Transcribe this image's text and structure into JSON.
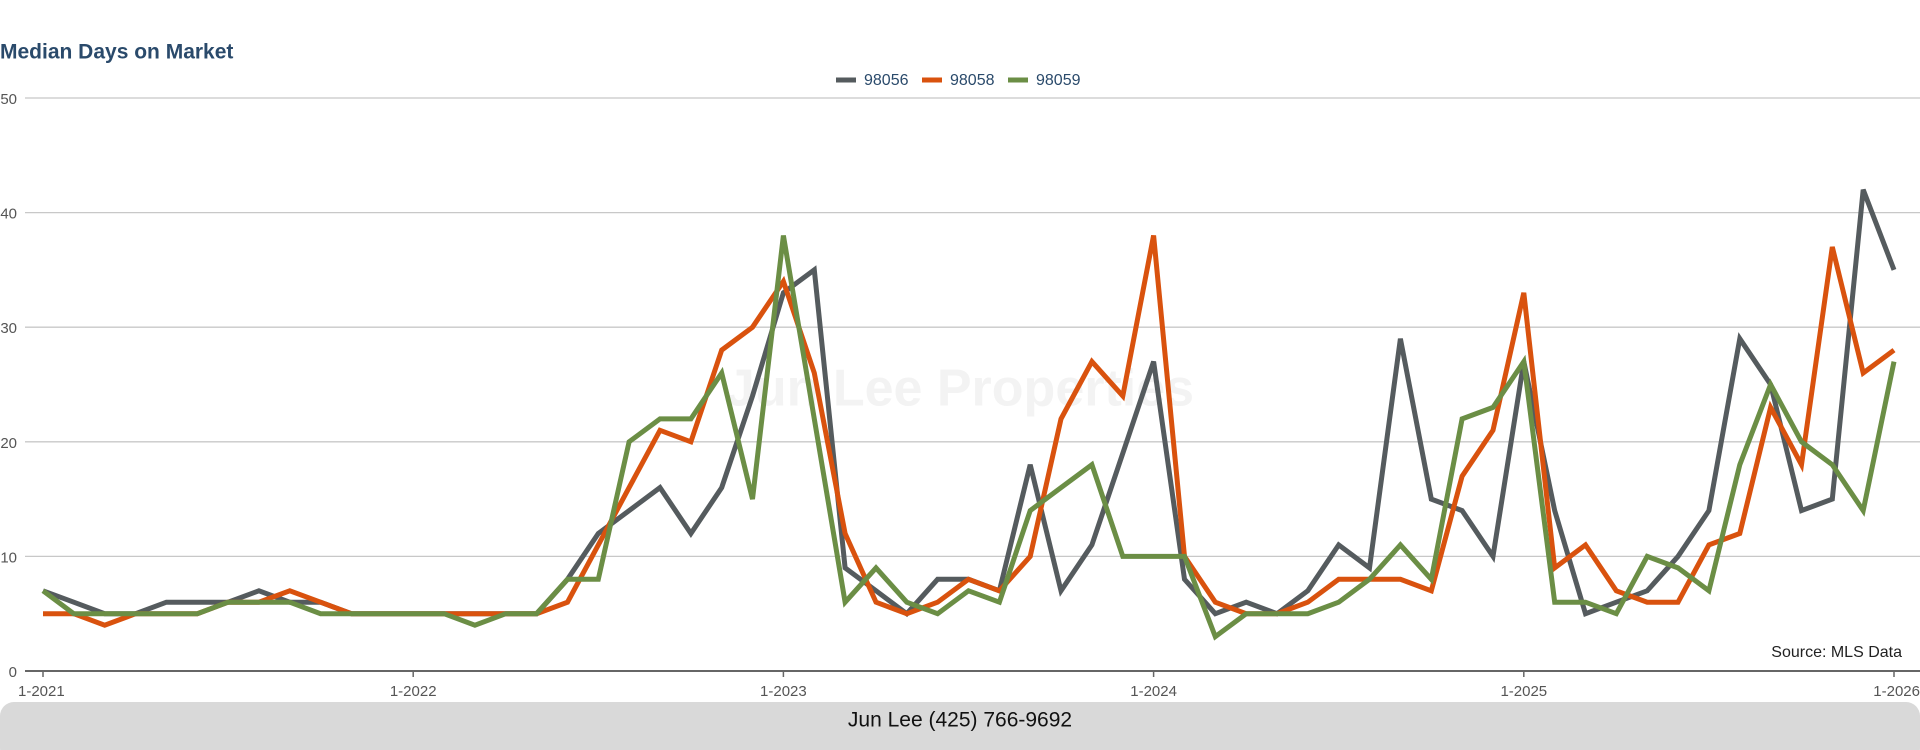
{
  "chart_data": {
    "type": "line",
    "title": "Median Days on Market",
    "watermark": "Jun Lee Properties",
    "source": "Source: MLS Data",
    "footer": "Jun Lee (425) 766-9692",
    "categories": [
      "1-2021",
      null,
      null,
      null,
      null,
      null,
      null,
      null,
      null,
      null,
      null,
      null,
      "1-2022",
      null,
      null,
      null,
      null,
      null,
      null,
      null,
      null,
      null,
      null,
      null,
      "1-2023",
      null,
      null,
      null,
      null,
      null,
      null,
      null,
      null,
      null,
      null,
      null,
      "1-2024",
      null,
      null,
      null,
      null,
      null,
      null,
      null,
      null,
      null,
      null,
      null,
      "1-2025",
      null,
      null,
      null,
      null,
      null,
      null,
      null,
      null,
      null,
      null,
      null,
      "1-2026"
    ],
    "series": [
      {
        "name": "98056",
        "color": "#555b5e",
        "values": [
          7,
          6,
          5,
          5,
          6,
          6,
          6,
          7,
          6,
          6,
          5,
          5,
          5,
          5,
          5,
          5,
          5,
          8,
          12,
          14,
          16,
          12,
          16,
          24,
          33,
          35,
          9,
          7,
          5,
          8,
          8,
          7,
          18,
          7,
          11,
          19,
          27,
          8,
          5,
          6,
          5,
          7,
          11,
          9,
          29,
          15,
          14,
          10,
          27,
          14,
          5,
          6,
          7,
          10,
          14,
          29,
          25,
          14,
          15,
          42,
          35
        ]
      },
      {
        "name": "98058",
        "color": "#d9520e",
        "values": [
          5,
          5,
          4,
          5,
          5,
          5,
          6,
          6,
          7,
          6,
          5,
          5,
          5,
          5,
          5,
          5,
          5,
          6,
          11,
          16,
          21,
          20,
          28,
          30,
          34,
          26,
          12,
          6,
          5,
          6,
          8,
          7,
          10,
          22,
          27,
          24,
          38,
          10,
          6,
          5,
          5,
          6,
          8,
          8,
          8,
          7,
          17,
          21,
          33,
          9,
          11,
          7,
          6,
          6,
          11,
          12,
          23,
          18,
          37,
          26,
          28
        ]
      },
      {
        "name": "98059",
        "color": "#6b8e45",
        "values": [
          7,
          5,
          5,
          5,
          5,
          5,
          6,
          6,
          6,
          5,
          5,
          5,
          5,
          5,
          4,
          5,
          5,
          8,
          8,
          20,
          22,
          22,
          26,
          15,
          38,
          22,
          6,
          9,
          6,
          5,
          7,
          6,
          14,
          16,
          18,
          10,
          10,
          10,
          3,
          5,
          5,
          5,
          6,
          8,
          11,
          8,
          22,
          23,
          27,
          6,
          6,
          5,
          10,
          9,
          7,
          18,
          25,
          20,
          18,
          14,
          27
        ]
      }
    ],
    "ylim": [
      0,
      50
    ],
    "yticks": [
      0,
      10,
      20,
      30,
      40,
      50
    ],
    "grid": true,
    "legend": "top"
  }
}
